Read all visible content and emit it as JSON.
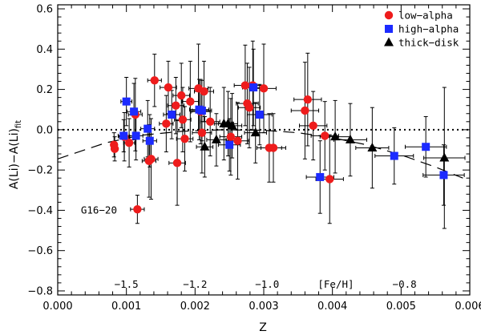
{
  "chart_data": {
    "type": "scatter",
    "xlabel": "Z",
    "ylabel": "A(Li) - A(Li)fit",
    "xlim": [
      0.0,
      0.006
    ],
    "ylim": [
      -0.82,
      0.62
    ],
    "xticks": [
      0.0,
      0.001,
      0.002,
      0.003,
      0.004,
      0.005,
      0.006
    ],
    "xtick_labels": [
      "0.000",
      "0.001",
      "0.002",
      "0.003",
      "0.004",
      "0.005",
      "0.006"
    ],
    "yticks": [
      -0.8,
      -0.6,
      -0.4,
      -0.2,
      0.0,
      0.2,
      0.4,
      0.6
    ],
    "ytick_labels": [
      "−0.8",
      "−0.6",
      "−0.4",
      "−0.2",
      "0.0",
      "0.2",
      "0.4",
      "0.6"
    ],
    "ylabel_main": "A(Li)−A(Li)",
    "ylabel_sub": "fit",
    "reference_line_y": 0.0,
    "feh_axis_title": "[Fe/H]",
    "feh_labels": [
      {
        "z": 0.001,
        "text": "−1.5"
      },
      {
        "z": 0.002,
        "text": "−1.2"
      },
      {
        "z": 0.00305,
        "text": "−1.0"
      },
      {
        "z": 0.00505,
        "text": "−0.8"
      }
    ],
    "feh_title_z": 0.00405,
    "annotation": {
      "text": "G16−20",
      "z": 0.0006,
      "y": -0.4
    },
    "legend": [
      {
        "label": "low−alpha",
        "marker": "circle",
        "color": "#ee1c1c"
      },
      {
        "label": "high−alpha",
        "marker": "square",
        "color": "#1c2bff"
      },
      {
        "label": "thick−disk",
        "marker": "triangle",
        "color": "#000000"
      }
    ],
    "dashed_curve": [
      [
        0.0,
        -0.145
      ],
      [
        0.0007,
        -0.065
      ],
      [
        0.0012,
        -0.028
      ],
      [
        0.0018,
        -0.008
      ],
      [
        0.0024,
        0.0
      ],
      [
        0.003,
        -0.003
      ],
      [
        0.0035,
        -0.015
      ],
      [
        0.004,
        -0.04
      ],
      [
        0.0045,
        -0.075
      ],
      [
        0.005,
        -0.125
      ],
      [
        0.0055,
        -0.185
      ],
      [
        0.0059,
        -0.24
      ]
    ],
    "series": [
      {
        "name": "low−alpha",
        "marker": "circle",
        "color": "#ee1c1c",
        "points": [
          {
            "x": 0.00082,
            "y": -0.075,
            "xerr": 4e-05,
            "yerr": 0.06
          },
          {
            "x": 0.00083,
            "y": -0.095,
            "xerr": 4e-05,
            "yerr": 0.06
          },
          {
            "x": 0.00097,
            "y": -0.035,
            "xerr": 8e-05,
            "yerr": 0.12
          },
          {
            "x": 0.00104,
            "y": -0.065,
            "xerr": 8e-05,
            "yerr": 0.12
          },
          {
            "x": 0.00113,
            "y": 0.075,
            "xerr": 0.0001,
            "yerr": 0.18
          },
          {
            "x": 0.00116,
            "y": -0.395,
            "xerr": 0.0001,
            "yerr": 0.07
          },
          {
            "x": 0.00133,
            "y": -0.155,
            "xerr": 0.0001,
            "yerr": 0.18
          },
          {
            "x": 0.00136,
            "y": -0.145,
            "xerr": 0.0001,
            "yerr": 0.2
          },
          {
            "x": 0.00141,
            "y": 0.245,
            "xerr": 0.0001,
            "yerr": 0.13
          },
          {
            "x": 0.00158,
            "y": 0.03,
            "xerr": 0.0001,
            "yerr": 0.14
          },
          {
            "x": 0.00161,
            "y": 0.21,
            "xerr": 0.00012,
            "yerr": 0.13
          },
          {
            "x": 0.00172,
            "y": 0.12,
            "xerr": 0.00012,
            "yerr": 0.14
          },
          {
            "x": 0.00174,
            "y": -0.165,
            "xerr": 0.00012,
            "yerr": 0.21
          },
          {
            "x": 0.0018,
            "y": 0.17,
            "xerr": 0.00012,
            "yerr": 0.16
          },
          {
            "x": 0.00182,
            "y": 0.05,
            "xerr": 0.00012,
            "yerr": 0.16
          },
          {
            "x": 0.00185,
            "y": -0.045,
            "xerr": 0.00012,
            "yerr": 0.16
          },
          {
            "x": 0.00193,
            "y": 0.14,
            "xerr": 0.00012,
            "yerr": 0.2
          },
          {
            "x": 0.00205,
            "y": 0.205,
            "xerr": 0.00014,
            "yerr": 0.22
          },
          {
            "x": 0.00208,
            "y": 0.09,
            "xerr": 0.00014,
            "yerr": 0.16
          },
          {
            "x": 0.0021,
            "y": -0.015,
            "xerr": 0.00014,
            "yerr": 0.2
          },
          {
            "x": 0.00213,
            "y": 0.19,
            "xerr": 0.00014,
            "yerr": 0.15
          },
          {
            "x": 0.00222,
            "y": 0.04,
            "xerr": 0.00014,
            "yerr": 0.17
          },
          {
            "x": 0.00252,
            "y": -0.035,
            "xerr": 0.00016,
            "yerr": 0.19
          },
          {
            "x": 0.00262,
            "y": -0.055,
            "xerr": 0.00016,
            "yerr": 0.19
          },
          {
            "x": 0.00273,
            "y": 0.22,
            "xerr": 0.00016,
            "yerr": 0.2
          },
          {
            "x": 0.00276,
            "y": 0.13,
            "xerr": 0.00016,
            "yerr": 0.2
          },
          {
            "x": 0.00279,
            "y": 0.11,
            "xerr": 0.00016,
            "yerr": 0.2
          },
          {
            "x": 0.00284,
            "y": 0.22,
            "xerr": 0.00016,
            "yerr": 0.22
          },
          {
            "x": 0.003,
            "y": 0.205,
            "xerr": 0.00018,
            "yerr": 0.22
          },
          {
            "x": 0.00308,
            "y": -0.09,
            "xerr": 0.00018,
            "yerr": 0.17
          },
          {
            "x": 0.00314,
            "y": -0.09,
            "xerr": 0.00018,
            "yerr": 0.17
          },
          {
            "x": 0.0036,
            "y": 0.095,
            "xerr": 0.0002,
            "yerr": 0.24
          },
          {
            "x": 0.00364,
            "y": 0.15,
            "xerr": 0.0002,
            "yerr": 0.23
          },
          {
            "x": 0.00372,
            "y": 0.02,
            "xerr": 0.0002,
            "yerr": 0.17
          },
          {
            "x": 0.00389,
            "y": -0.03,
            "xerr": 0.0002,
            "yerr": 0.17
          },
          {
            "x": 0.00396,
            "y": -0.245,
            "xerr": 0.0002,
            "yerr": 0.22
          }
        ]
      },
      {
        "name": "high−alpha",
        "marker": "square",
        "color": "#1c2bff",
        "points": [
          {
            "x": 0.00096,
            "y": -0.03,
            "xerr": 8e-05,
            "yerr": 0.08
          },
          {
            "x": 0.001,
            "y": 0.14,
            "xerr": 8e-05,
            "yerr": 0.12
          },
          {
            "x": 0.00111,
            "y": 0.09,
            "xerr": 0.0001,
            "yerr": 0.14
          },
          {
            "x": 0.00114,
            "y": -0.03,
            "xerr": 0.0001,
            "yerr": 0.12
          },
          {
            "x": 0.00131,
            "y": 0.005,
            "xerr": 0.0001,
            "yerr": 0.14
          },
          {
            "x": 0.00134,
            "y": -0.055,
            "xerr": 0.0001,
            "yerr": 0.13
          },
          {
            "x": 0.00166,
            "y": 0.075,
            "xerr": 0.00012,
            "yerr": 0.12
          },
          {
            "x": 0.00206,
            "y": 0.1,
            "xerr": 0.00014,
            "yerr": 0.15
          },
          {
            "x": 0.0021,
            "y": 0.095,
            "xerr": 0.00014,
            "yerr": 0.15
          },
          {
            "x": 0.0025,
            "y": -0.075,
            "xerr": 0.00016,
            "yerr": 0.13
          },
          {
            "x": 0.00285,
            "y": 0.21,
            "xerr": 0.00016,
            "yerr": 0.19
          },
          {
            "x": 0.00294,
            "y": 0.075,
            "xerr": 0.00018,
            "yerr": 0.15
          },
          {
            "x": 0.00382,
            "y": -0.235,
            "xerr": 0.0002,
            "yerr": 0.18
          },
          {
            "x": 0.0049,
            "y": -0.13,
            "xerr": 0.00028,
            "yerr": 0.14
          },
          {
            "x": 0.00536,
            "y": -0.085,
            "xerr": 0.0003,
            "yerr": 0.15
          },
          {
            "x": 0.00562,
            "y": -0.225,
            "xerr": 0.0003,
            "yerr": 0.15
          }
        ]
      },
      {
        "name": "thick−disk",
        "marker": "triangle",
        "color": "#000000",
        "points": [
          {
            "x": 0.00214,
            "y": -0.085,
            "xerr": 0.00012,
            "yerr": 0.15
          },
          {
            "x": 0.00231,
            "y": -0.05,
            "xerr": 0.00014,
            "yerr": 0.13
          },
          {
            "x": 0.00242,
            "y": 0.03,
            "xerr": 0.00014,
            "yerr": 0.18
          },
          {
            "x": 0.00248,
            "y": 0.03,
            "xerr": 0.00014,
            "yerr": 0.16
          },
          {
            "x": 0.00254,
            "y": 0.02,
            "xerr": 0.00014,
            "yerr": 0.16
          },
          {
            "x": 0.00288,
            "y": -0.015,
            "xerr": 0.00016,
            "yerr": 0.15
          },
          {
            "x": 0.00404,
            "y": -0.035,
            "xerr": 0.00022,
            "yerr": 0.18
          },
          {
            "x": 0.00426,
            "y": -0.05,
            "xerr": 0.00024,
            "yerr": 0.18
          },
          {
            "x": 0.00458,
            "y": -0.09,
            "xerr": 0.00024,
            "yerr": 0.2
          },
          {
            "x": 0.00563,
            "y": -0.14,
            "xerr": 0.0003,
            "yerr": 0.35
          }
        ]
      }
    ]
  }
}
